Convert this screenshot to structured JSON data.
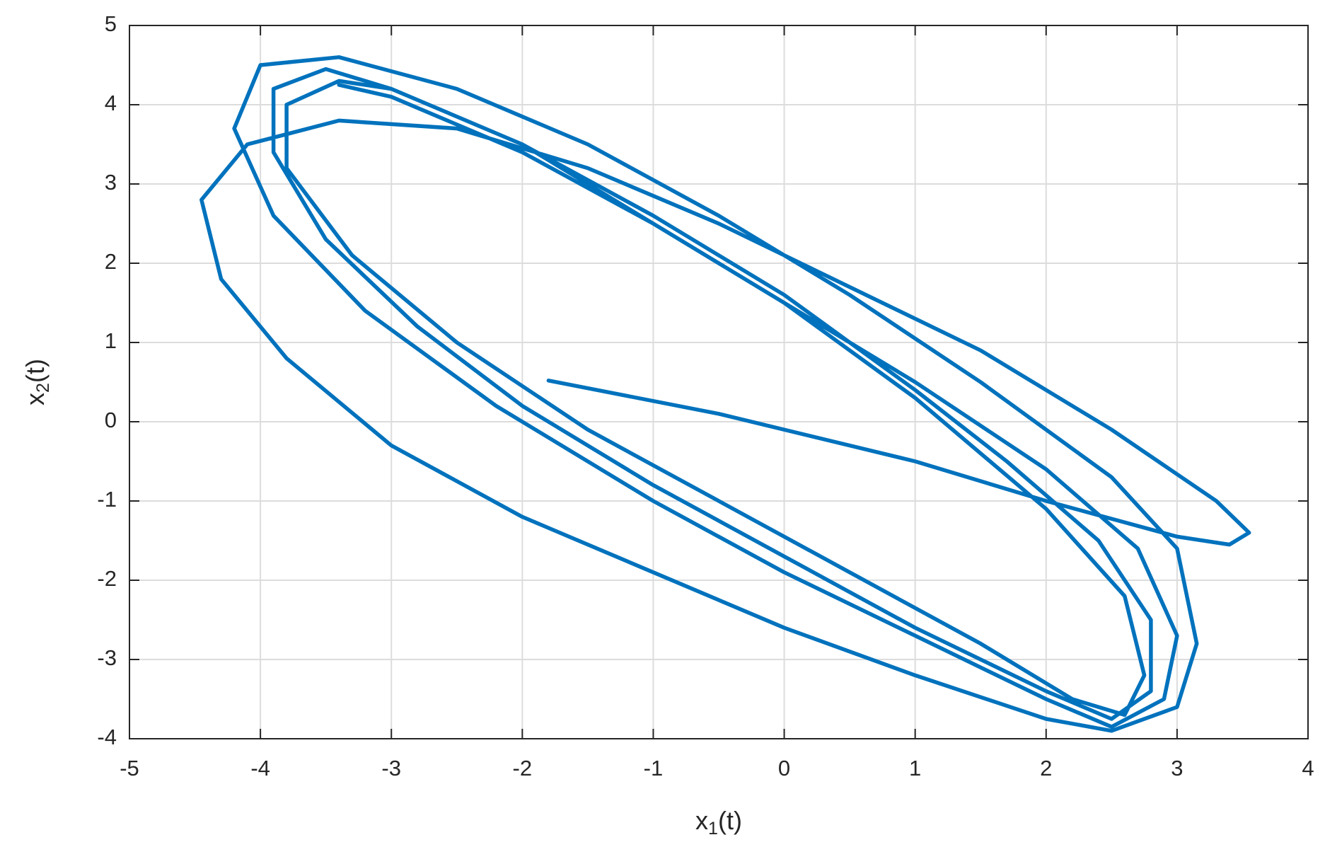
{
  "chart_data": {
    "type": "line",
    "x_label": {
      "base": "x",
      "sub": "1",
      "tail": "(t)"
    },
    "y_label": {
      "base": "x",
      "sub": "2",
      "tail": "(t)"
    },
    "xlim": [
      -5,
      4
    ],
    "xticks": [
      -5,
      -4,
      -3,
      -2,
      -1,
      0,
      1,
      2,
      3,
      4
    ],
    "ylim": [
      -4,
      5
    ],
    "yticks": [
      -4,
      -3,
      -2,
      -1,
      0,
      1,
      2,
      3,
      4,
      5
    ],
    "grid": true,
    "series": [
      {
        "color": "#0072bd",
        "x": [
          -1.8,
          -0.5,
          1,
          2,
          3,
          3.4,
          3.55,
          3.3,
          2.5,
          1.5,
          0.5,
          -0.5,
          -1.5,
          -2.5,
          -3.4,
          -4.1,
          -4.45,
          -4.3,
          -3.8,
          -3,
          -2,
          -1,
          0,
          1,
          2,
          2.5,
          3,
          3.15,
          3,
          2.5,
          1.5,
          0.5,
          -0.5,
          -1.5,
          -2.5,
          -3.4,
          -4.0,
          -4.2,
          -3.9,
          -3.2,
          -2.2,
          -1,
          0,
          1,
          2,
          2.5,
          2.9,
          3.0,
          2.7,
          2.0,
          1,
          0,
          -1,
          -2,
          -3,
          -3.5,
          -3.9,
          -3.9,
          -3.5,
          -2.8,
          -2,
          -1,
          0,
          1,
          2,
          2.5,
          2.8,
          2.8,
          2.4,
          1.7,
          1,
          0,
          -1,
          -2,
          -3,
          -3.4,
          -3.8,
          -3.8,
          -3.3,
          -2.5,
          -1.5,
          -0.5,
          0.5,
          1.5,
          2.2,
          2.6,
          2.75,
          2.6,
          2.0,
          1,
          0,
          -1,
          -2,
          -3,
          -3.4
        ],
        "values": [
          0.52,
          0.1,
          -0.5,
          -1.0,
          -1.45,
          -1.55,
          -1.4,
          -1.0,
          -0.1,
          0.9,
          1.7,
          2.5,
          3.2,
          3.7,
          3.8,
          3.5,
          2.8,
          1.8,
          0.8,
          -0.3,
          -1.2,
          -1.9,
          -2.6,
          -3.2,
          -3.75,
          -3.9,
          -3.6,
          -2.8,
          -1.6,
          -0.7,
          0.5,
          1.6,
          2.6,
          3.5,
          4.2,
          4.6,
          4.5,
          3.7,
          2.6,
          1.4,
          0.2,
          -1.0,
          -1.9,
          -2.7,
          -3.5,
          -3.85,
          -3.5,
          -2.7,
          -1.6,
          -0.6,
          0.5,
          1.5,
          2.5,
          3.5,
          4.2,
          4.45,
          4.2,
          3.4,
          2.3,
          1.2,
          0.2,
          -0.8,
          -1.7,
          -2.6,
          -3.4,
          -3.75,
          -3.4,
          -2.5,
          -1.5,
          -0.5,
          0.4,
          1.6,
          2.6,
          3.5,
          4.2,
          4.3,
          4.0,
          3.2,
          2.1,
          1.0,
          -0.1,
          -1.0,
          -1.9,
          -2.8,
          -3.5,
          -3.7,
          -3.2,
          -2.2,
          -1.1,
          0.3,
          1.5,
          2.5,
          3.4,
          4.1,
          4.25
        ]
      }
    ]
  }
}
